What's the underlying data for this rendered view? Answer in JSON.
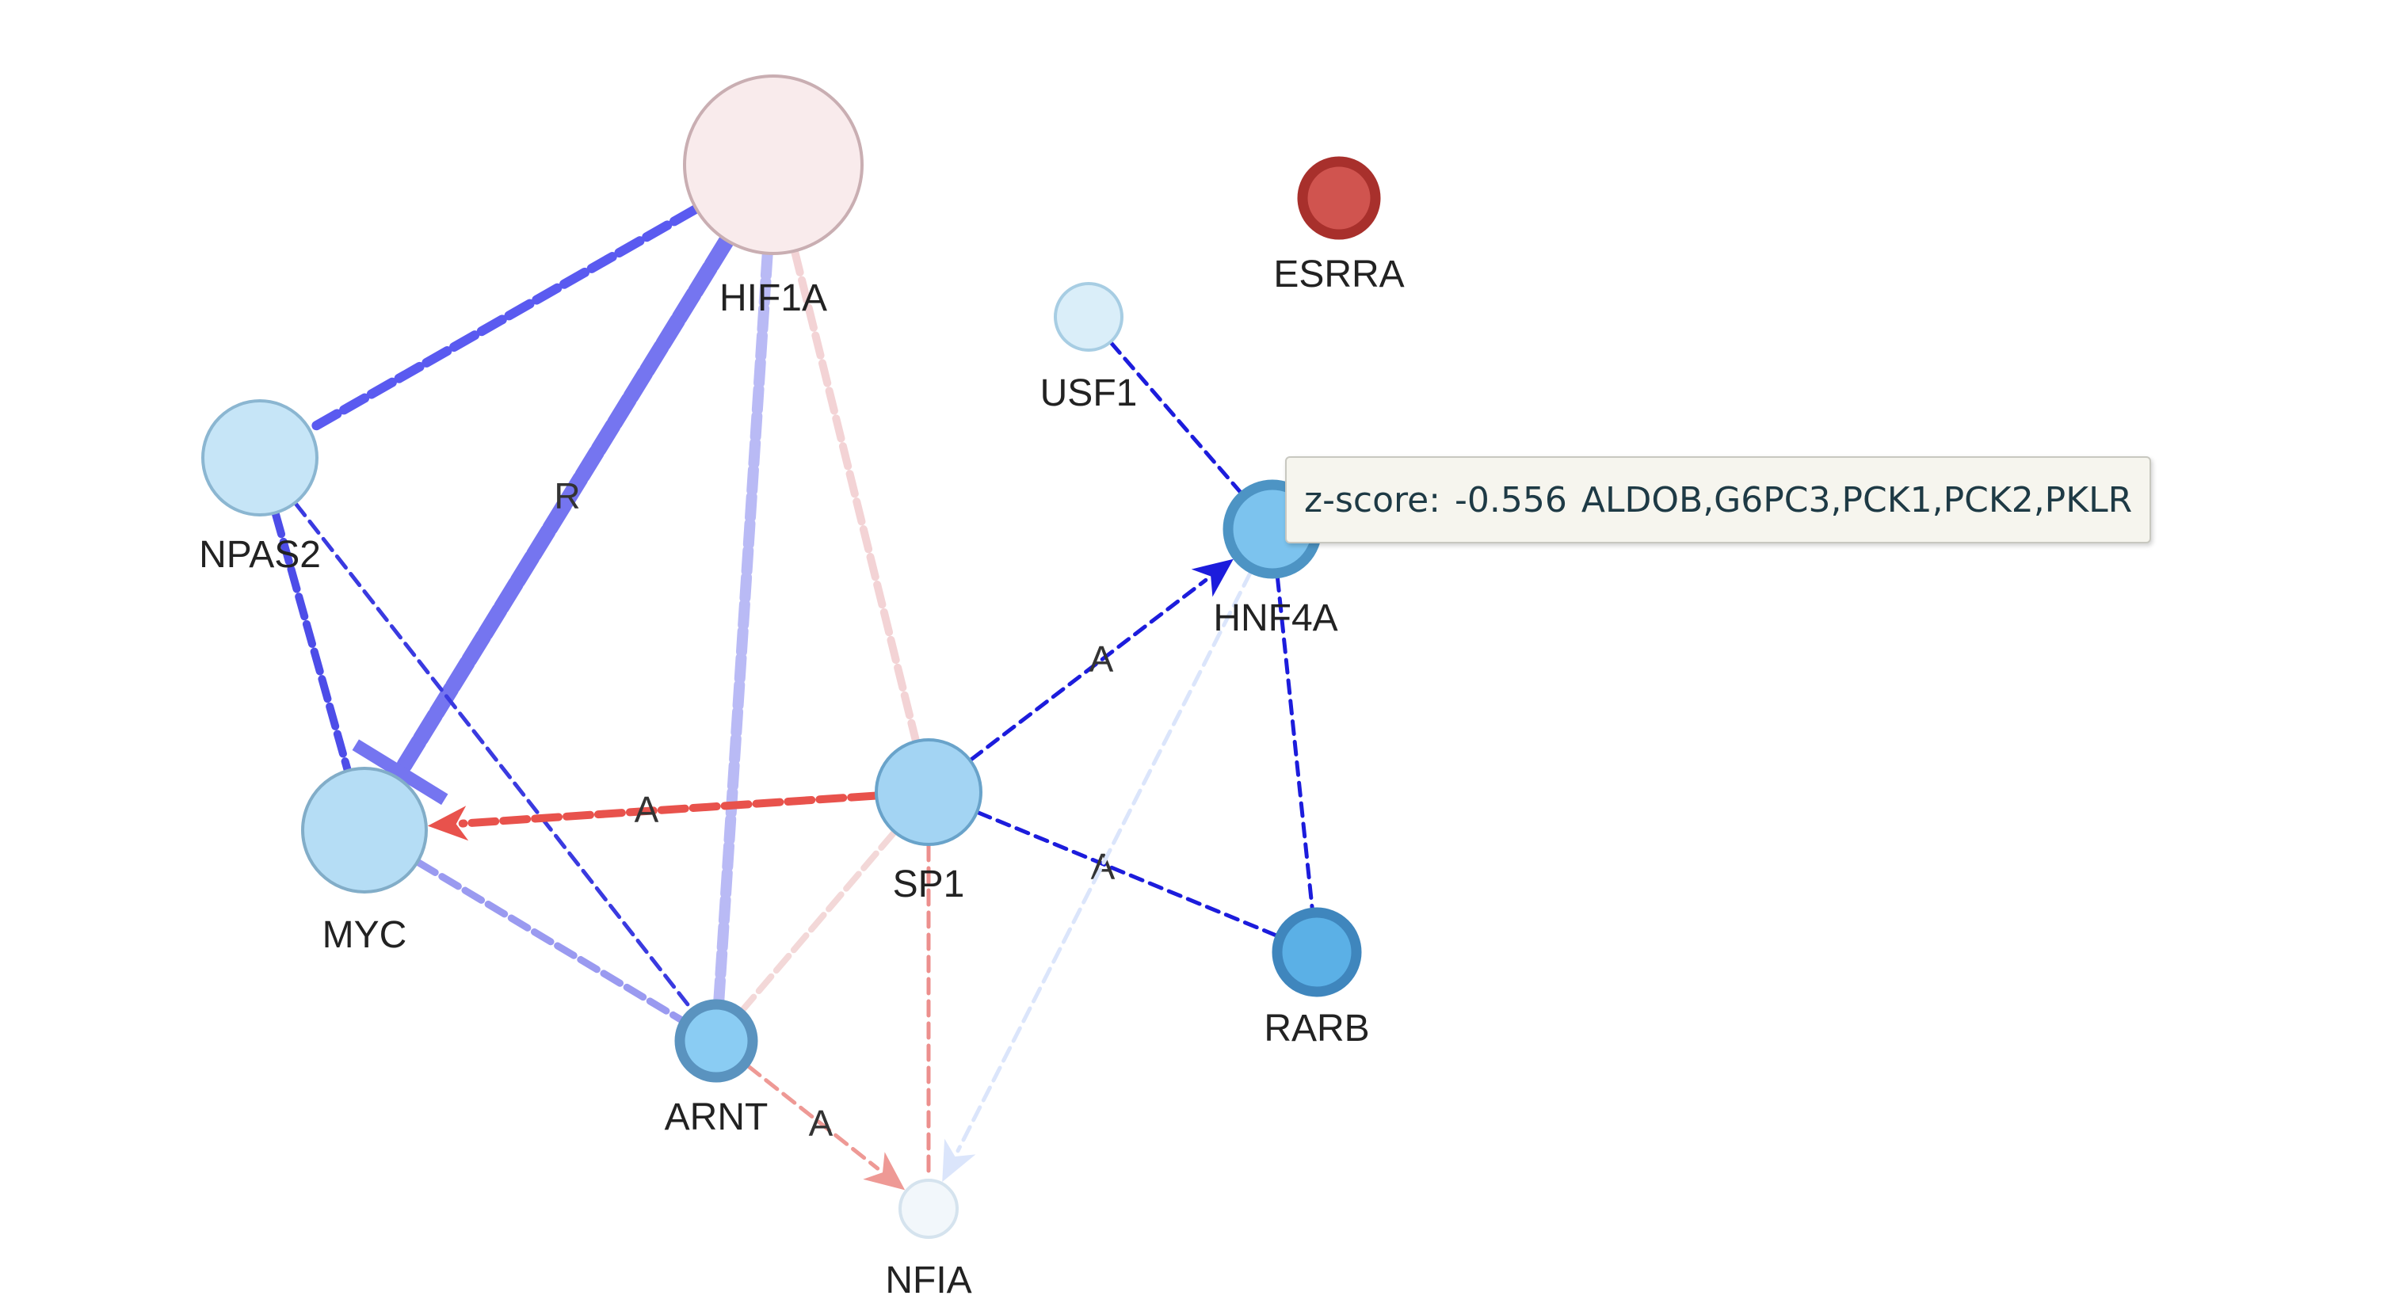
{
  "nodes": [
    {
      "id": "HIF1A",
      "label": "HIF1A",
      "fill": "#f9ebec",
      "stroke": "#c9aeb2"
    },
    {
      "id": "ESRRA",
      "label": "ESRRA",
      "fill": "#a8302c",
      "stroke": "#a8302c",
      "inner": "#d0544f"
    },
    {
      "id": "USF1",
      "label": "USF1",
      "fill": "#daeef9",
      "stroke": "#a7cde3"
    },
    {
      "id": "NPAS2",
      "label": "NPAS2",
      "fill": "#c6e5f7",
      "stroke": "#8bb6d1"
    },
    {
      "id": "HNF4A",
      "label": "HNF4A",
      "fill": "#7cc3ee",
      "stroke": "#4d94c4",
      "inner": "#7cc3ee"
    },
    {
      "id": "MYC",
      "label": "MYC",
      "fill": "#b5ddf5",
      "stroke": "#82adc8"
    },
    {
      "id": "SP1",
      "label": "SP1",
      "fill": "#a3d4f3",
      "stroke": "#69a3ca"
    },
    {
      "id": "RARB",
      "label": "RARB",
      "fill": "#5bb0e6",
      "stroke": "#3f86bd",
      "inner": "#5bb0e6"
    },
    {
      "id": "ARNT",
      "label": "ARNT",
      "fill": "#8accf3",
      "stroke": "#5a93bf",
      "inner": "#8accf3"
    },
    {
      "id": "NFIA",
      "label": "NFIA",
      "fill": "#f2f7fb",
      "stroke": "#d5e3ee"
    }
  ],
  "edges": [
    {
      "source": "HIF1A",
      "target": "NPAS2",
      "color": "#5a5af0"
    },
    {
      "source": "HIF1A",
      "target": "MYC",
      "color": "#7575f0",
      "label": "R",
      "arrow": "inhibit"
    },
    {
      "source": "HIF1A",
      "target": "ARNT",
      "color": "#b9baf5"
    },
    {
      "source": "HIF1A",
      "target": "SP1",
      "color": "#f3d3d5"
    },
    {
      "source": "NPAS2",
      "target": "MYC",
      "color": "#4d4de8"
    },
    {
      "source": "NPAS2",
      "target": "ARNT",
      "color": "#3a3ae0"
    },
    {
      "source": "USF1",
      "target": "HNF4A",
      "color": "#1c1cdc"
    },
    {
      "source": "HNF4A",
      "target": "RARB",
      "color": "#1c1cdc"
    },
    {
      "source": "SP1",
      "target": "HNF4A",
      "color": "#1c1cdc",
      "label": "A",
      "arrow": "activate"
    },
    {
      "source": "SP1",
      "target": "RARB",
      "color": "#1c1cdc",
      "label": "A"
    },
    {
      "source": "SP1",
      "target": "MYC",
      "color": "#e8524c",
      "label": "A",
      "arrow": "activate"
    },
    {
      "source": "MYC",
      "target": "ARNT",
      "color": "#9a9af0"
    },
    {
      "source": "SP1",
      "target": "ARNT",
      "color": "#f3d8d8"
    },
    {
      "source": "SP1",
      "target": "NFIA",
      "color": "#ec8f8d"
    },
    {
      "source": "ARNT",
      "target": "NFIA",
      "color": "#ee9995",
      "label": "A",
      "arrow": "activate"
    },
    {
      "source": "HNF4A",
      "target": "NFIA",
      "color": "#dbe5fb",
      "arrow": "activate"
    }
  ],
  "tooltip": {
    "key": "z-score:",
    "value": "-0.556",
    "genes": "ALDOB,G6PC3,PCK1,PCK2,PKLR"
  }
}
